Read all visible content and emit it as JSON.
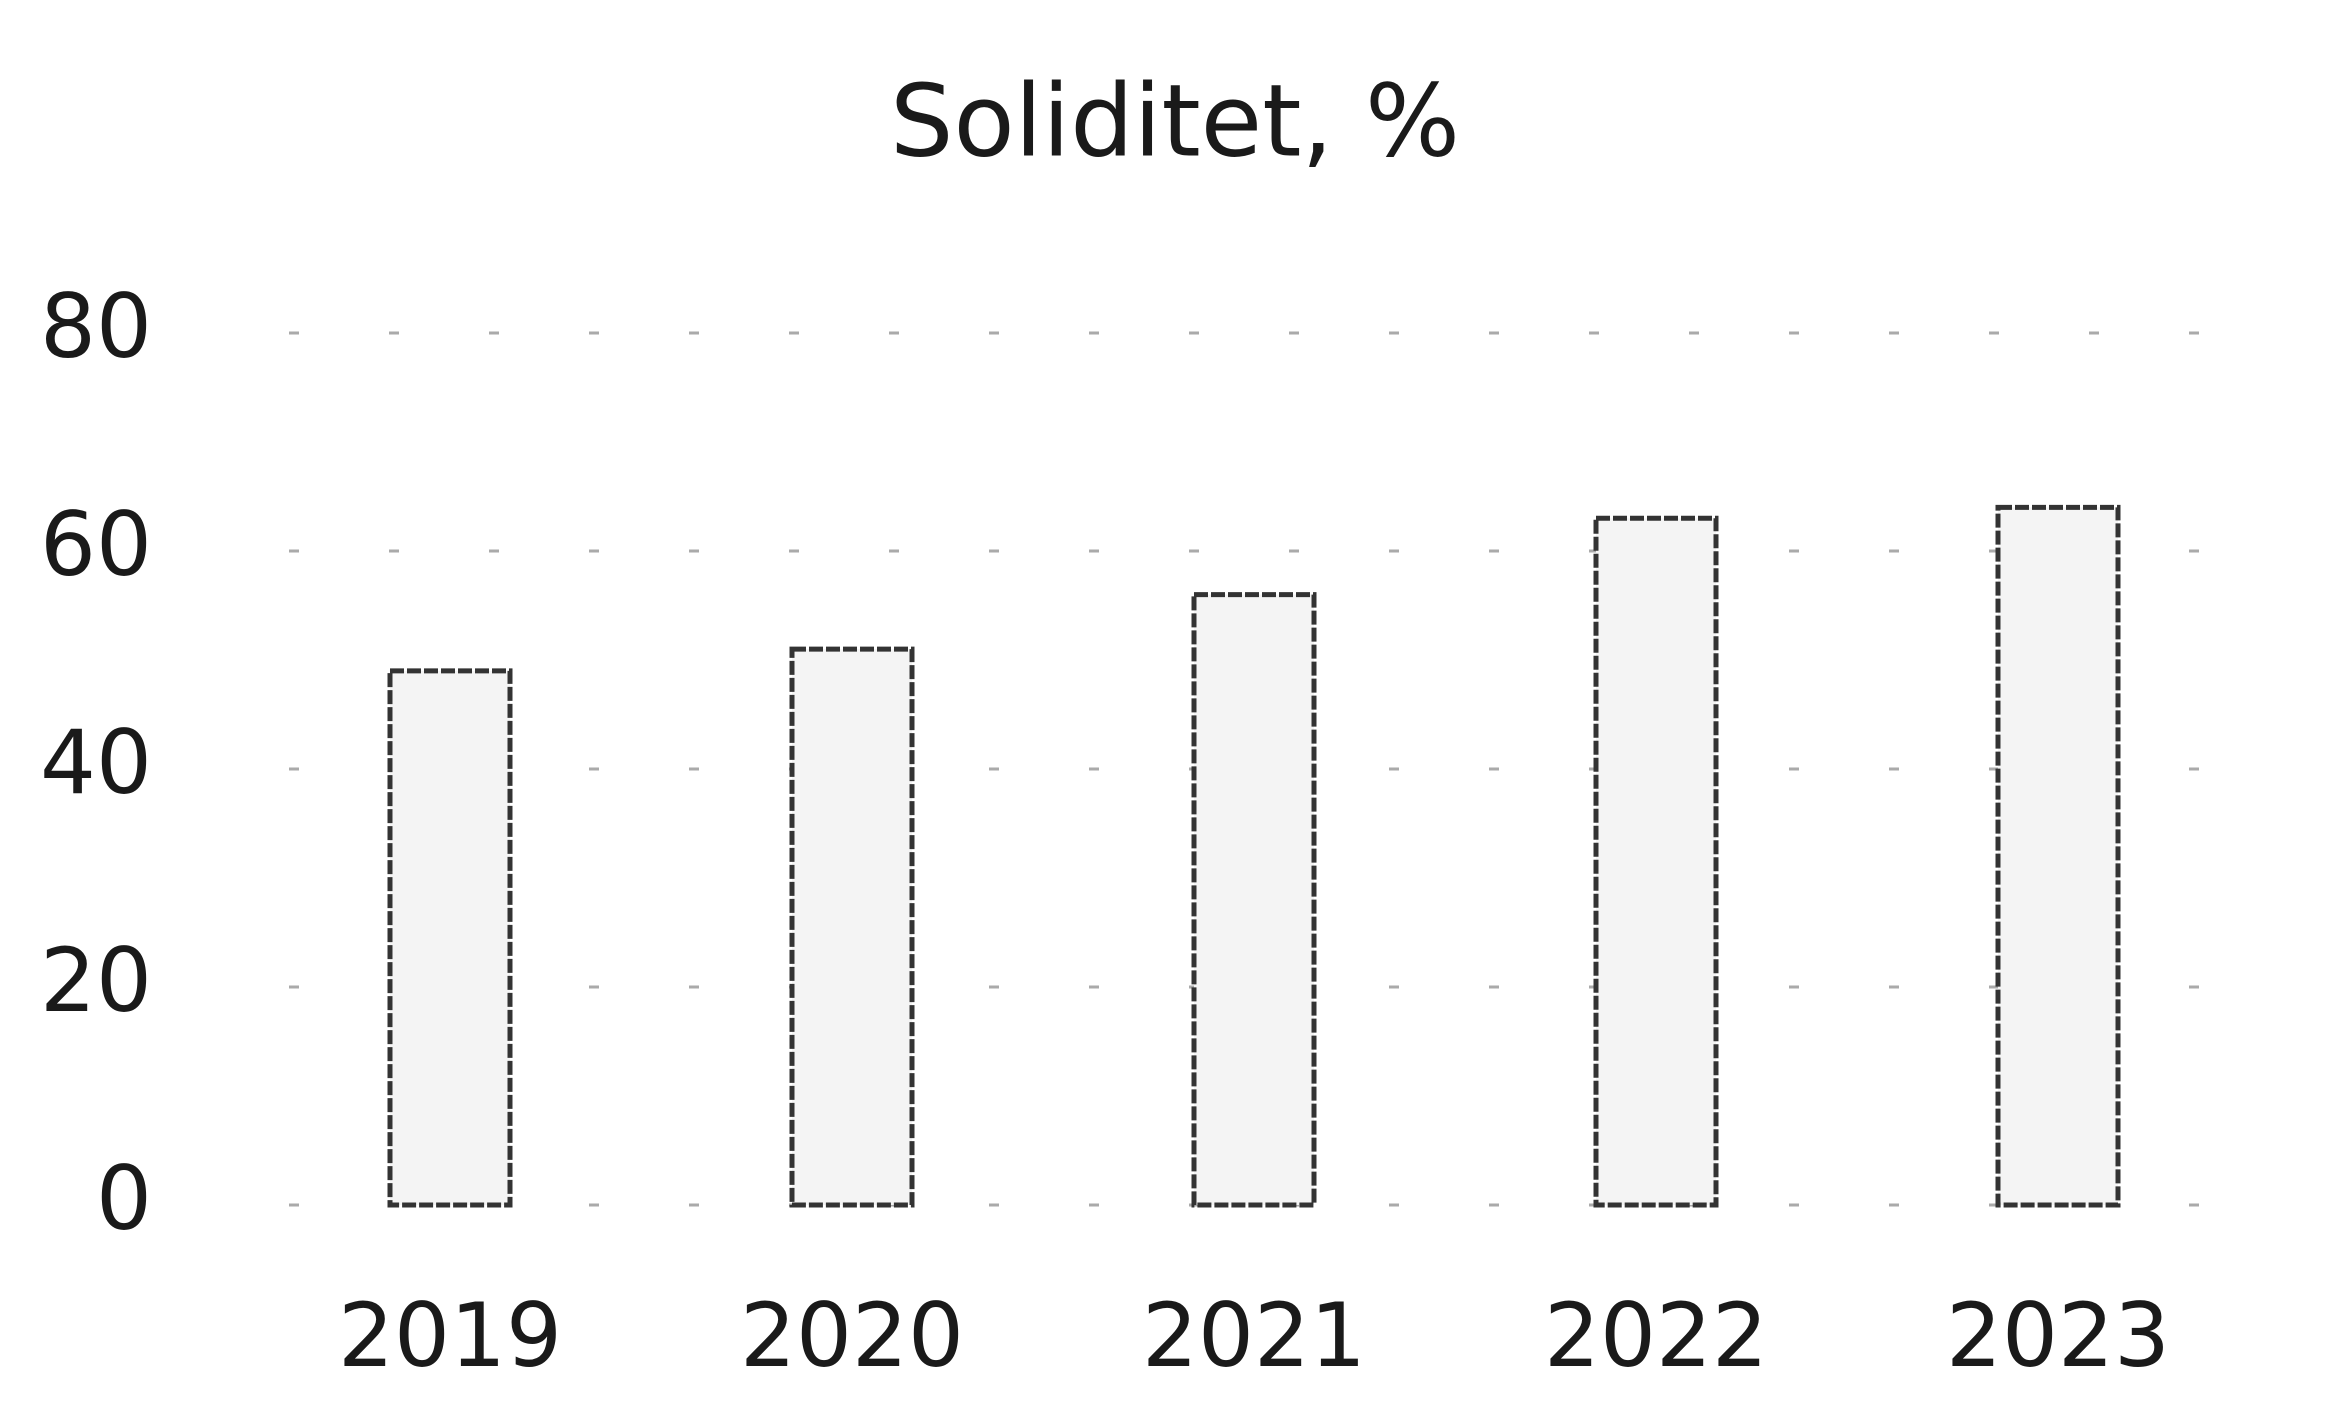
{
  "chart_data": {
    "type": "bar",
    "title": "Soliditet, %",
    "categories": [
      "2019",
      "2020",
      "2021",
      "2022",
      "2023"
    ],
    "values": [
      49,
      51,
      56,
      63,
      64
    ],
    "color": "#f4f4f4",
    "ylim": [
      0,
      80
    ],
    "yticks": [
      0,
      20,
      40,
      60,
      80
    ],
    "grid": true
  }
}
